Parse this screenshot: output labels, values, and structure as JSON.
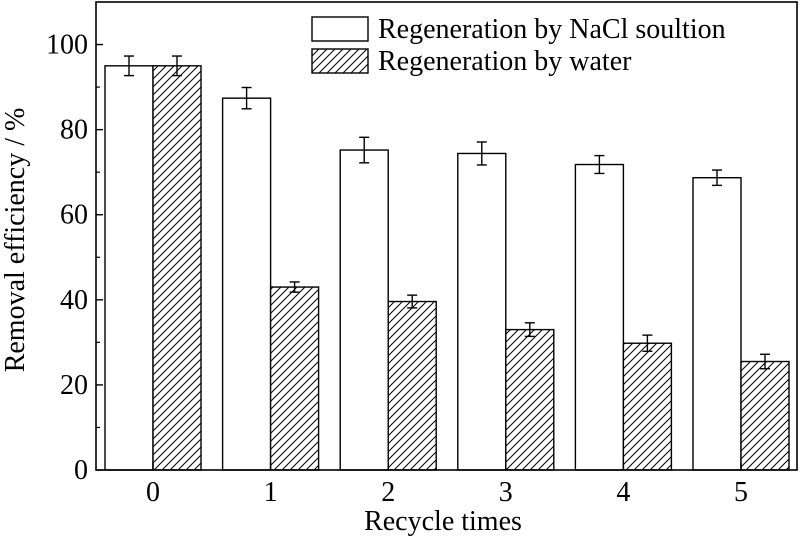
{
  "chart_data": {
    "type": "bar",
    "xlabel": "Recycle times",
    "ylabel": "Removal efficiency / %",
    "categories": [
      "0",
      "1",
      "2",
      "3",
      "4",
      "5"
    ],
    "ylim": [
      0,
      110
    ],
    "yticks": [
      0,
      20,
      40,
      60,
      80,
      100
    ],
    "grid": false,
    "legend_position": "top-right",
    "series": [
      {
        "name": "Regeneration by NaCl soultion",
        "fill": "white",
        "values": [
          95.0,
          87.4,
          75.2,
          74.4,
          71.8,
          68.7
        ],
        "errors": [
          2.3,
          2.5,
          3.0,
          2.7,
          2.1,
          1.8
        ]
      },
      {
        "name": "Regeneration by water",
        "fill": "hatched",
        "values": [
          95.0,
          43.0,
          39.6,
          33.0,
          29.8,
          25.5
        ],
        "errors": [
          2.3,
          1.2,
          1.5,
          1.6,
          1.9,
          1.7
        ]
      }
    ]
  }
}
